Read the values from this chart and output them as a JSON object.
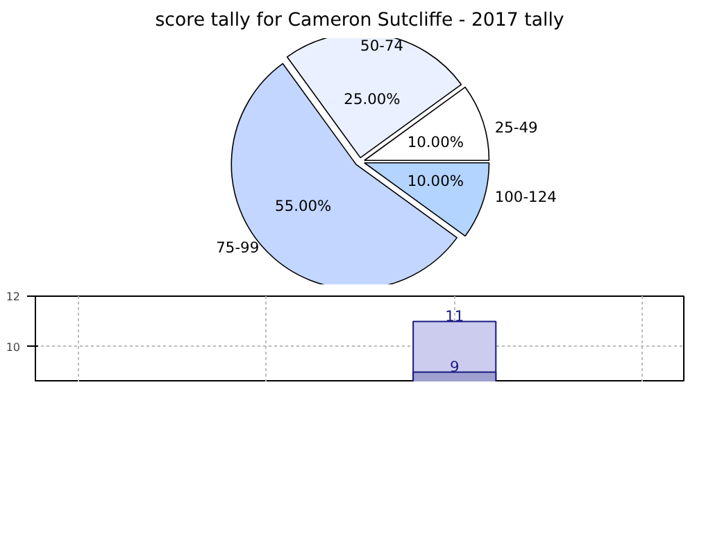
{
  "chart_data": [
    {
      "type": "pie",
      "title": "score tally for Cameron Sutcliffe - 2017 tally",
      "categories": [
        "25-49",
        "50-74",
        "75-99",
        "100-124"
      ],
      "values": [
        10,
        25,
        55,
        10
      ],
      "value_labels": [
        "10.00%",
        "25.00%",
        "55.00%",
        "10.00%"
      ],
      "colors": [
        "#ffffff",
        "#eaf0ff",
        "#c3d6ff",
        "#b3d4ff"
      ]
    },
    {
      "type": "bar",
      "categories": [
        null,
        null,
        null,
        null
      ],
      "series": [
        {
          "color": "#ccccee",
          "values": [
            null,
            null,
            11,
            null
          ]
        },
        {
          "color": "#a0a0d0",
          "values": [
            null,
            null,
            9,
            null
          ]
        }
      ],
      "data_labels": true,
      "ylim": [
        8.6,
        12
      ],
      "yticks": [
        10,
        12
      ],
      "grid": true,
      "tick_labels": "y"
    }
  ]
}
